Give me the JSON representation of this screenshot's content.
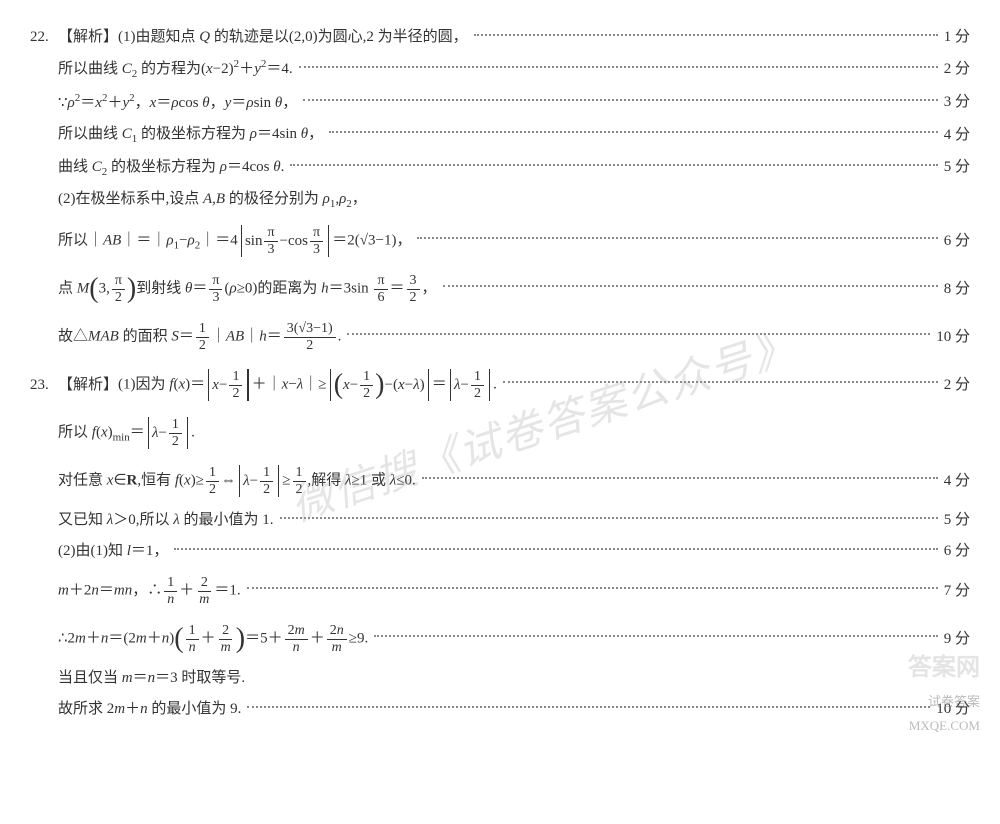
{
  "q22": {
    "num": "22.",
    "tag": "【解析】",
    "lines": [
      {
        "html": "(1)由题知点 <span class='ital'>Q</span> 的轨迹是以(2,0)为圆心,2 为半径的圆，",
        "score": "1 分",
        "tall": false
      },
      {
        "html": "所以曲线 <span class='ital'>C</span><sub>2</sub> 的方程为(<span class='ital'>x</span>−2)<sup>2</sup>＋<span class='ital'>y</span><sup>2</sup>＝4.",
        "score": "2 分",
        "tall": false
      },
      {
        "html": "∵<span class='ital'>ρ</span><sup>2</sup>＝<span class='ital'>x</span><sup>2</sup>＋<span class='ital'>y</span><sup>2</sup>，<span class='ital'>x</span>＝<span class='ital'>ρ</span>cos <span class='ital'>θ</span>，<span class='ital'>y</span>＝<span class='ital'>ρ</span>sin <span class='ital'>θ</span>，",
        "score": "3 分",
        "tall": false
      },
      {
        "html": "所以曲线 <span class='ital'>C</span><sub>1</sub> 的极坐标方程为 <span class='ital'>ρ</span>＝4sin <span class='ital'>θ</span>，",
        "score": "4 分",
        "tall": false
      },
      {
        "html": "曲线 <span class='ital'>C</span><sub>2</sub> 的极坐标方程为 <span class='ital'>ρ</span>＝4cos <span class='ital'>θ</span>.",
        "score": "5 分",
        "tall": false
      },
      {
        "html": "(2)在极坐标系中,设点 <span class='ital'>A</span>,<span class='ital'>B</span> 的极径分别为 <span class='ital'>ρ</span><sub>1</sub>,<span class='ital'>ρ</span><sub>2</sub>，",
        "score": "",
        "tall": false
      },
      {
        "html": "所以｜<span class='ital'>AB</span>｜＝｜<span class='ital'>ρ</span><sub>1</sub>−<span class='ital'>ρ</span><sub>2</sub>｜＝4<span class='abs-wrap'><span class='abs-bar'></span> sin <span class='frac'><span class='num'>π</span><span class='den'>3</span></span>−cos <span class='frac'><span class='num'>π</span><span class='den'>3</span></span> <span class='abs-bar'></span></span>＝2(√3−1)，",
        "score": "6 分",
        "tall": true
      },
      {
        "html": "点 <span class='ital'>M</span><span class='paren-l'>(</span>3,<span class='frac'><span class='num'>π</span><span class='den'>2</span></span><span class='paren-r'>)</span>到射线 <span class='ital'>θ</span>＝<span class='frac'><span class='num'>π</span><span class='den'>3</span></span>(<span class='ital'>ρ</span>≥0)的距离为 <span class='ital'>h</span>＝3sin <span class='frac'><span class='num'>π</span><span class='den'>6</span></span>＝<span class='frac'><span class='num'>3</span><span class='den'>2</span></span>，",
        "score": "8 分",
        "tall": true
      },
      {
        "html": "故△<span class='ital'>MAB</span> 的面积 <span class='ital'>S</span>＝<span class='frac'><span class='num'>1</span><span class='den'>2</span></span>｜<span class='ital'>AB</span>｜<span class='ital'>h</span>＝<span class='frac'><span class='num'>3(√3−1)</span><span class='den'>2</span></span>.",
        "score": "10 分",
        "tall": true
      }
    ]
  },
  "q23": {
    "num": "23.",
    "tag": "【解析】",
    "lines": [
      {
        "html": "(1)因为 <span class='ital'>f</span>(<span class='ital'>x</span>)＝<span class='abs-wrap'><span class='abs-bar'></span> <span class='ital'>x</span>−<span class='frac'><span class='num'>1</span><span class='den'>2</span></span> <span class='abs-bar'></span></span>＋｜<span class='ital'>x</span>−<span class='ital'>λ</span>｜≥<span class='abs-wrap'><span class='abs-bar'></span> <span class='paren-l'>(</span><span class='ital'>x</span>−<span class='frac'><span class='num'>1</span><span class='den'>2</span></span><span class='paren-r'>)</span>−(<span class='ital'>x</span>−<span class='ital'>λ</span>) <span class='abs-bar'></span></span>＝<span class='abs-wrap'><span class='abs-bar'></span> <span class='ital'>λ</span>−<span class='frac'><span class='num'>1</span><span class='den'>2</span></span> <span class='abs-bar'></span></span>.",
        "score": "2 分",
        "tall": true
      },
      {
        "html": "所以 <span class='ital'>f</span>(<span class='ital'>x</span>)<sub>min</sub>＝<span class='abs-wrap'><span class='abs-bar'></span> <span class='ital'>λ</span>−<span class='frac'><span class='num'>1</span><span class='den'>2</span></span> <span class='abs-bar'></span></span>.",
        "score": "",
        "tall": true
      },
      {
        "html": "对任意 <span class='ital'>x</span>∈<b>R</b>,恒有 <span class='ital'>f</span>(<span class='ital'>x</span>)≥<span class='frac'><span class='num'>1</span><span class='den'>2</span></span>⇔<span class='abs-wrap'><span class='abs-bar'></span> <span class='ital'>λ</span>−<span class='frac'><span class='num'>1</span><span class='den'>2</span></span> <span class='abs-bar'></span></span>≥<span class='frac'><span class='num'>1</span><span class='den'>2</span></span>,解得 <span class='ital'>λ</span>≥1 或 <span class='ital'>λ</span>≤0.",
        "score": "4 分",
        "tall": true
      },
      {
        "html": "又已知 <span class='ital'>λ</span>＞0,所以 <span class='ital'>λ</span> 的最小值为 1.",
        "score": "5 分",
        "tall": false
      },
      {
        "html": "(2)由(1)知 <span class='ital'>l</span>＝1，",
        "score": "6 分",
        "tall": false
      },
      {
        "html": "<span class='ital'>m</span>＋2<span class='ital'>n</span>＝<span class='ital'>mn</span>，∴<span class='frac'><span class='num'>1</span><span class='den'><span class='ital'>n</span></span></span>＋<span class='frac'><span class='num'>2</span><span class='den'><span class='ital'>m</span></span></span>＝1.",
        "score": "7 分",
        "tall": true
      },
      {
        "html": "∴2<span class='ital'>m</span>＋<span class='ital'>n</span>＝(2<span class='ital'>m</span>＋<span class='ital'>n</span>)<span class='paren-l'>(</span><span class='frac'><span class='num'>1</span><span class='den'><span class='ital'>n</span></span></span>＋<span class='frac'><span class='num'>2</span><span class='den'><span class='ital'>m</span></span></span><span class='paren-r'>)</span>＝5＋<span class='frac'><span class='num'>2<span class='ital'>m</span></span><span class='den'><span class='ital'>n</span></span></span>＋<span class='frac'><span class='num'>2<span class='ital'>n</span></span><span class='den'><span class='ital'>m</span></span></span>≥9.",
        "score": "9 分",
        "tall": true
      },
      {
        "html": "当且仅当 <span class='ital'>m</span>＝<span class='ital'>n</span>＝3 时取等号.",
        "score": "",
        "tall": false
      },
      {
        "html": "故所求 2<span class='ital'>m</span>＋<span class='ital'>n</span> 的最小值为 9.",
        "score": "10 分",
        "tall": false
      }
    ]
  },
  "watermark": "微信搜《试卷答案公众号》",
  "wm_bottom": "答案网\n试卷答案\nMXQE.COM"
}
